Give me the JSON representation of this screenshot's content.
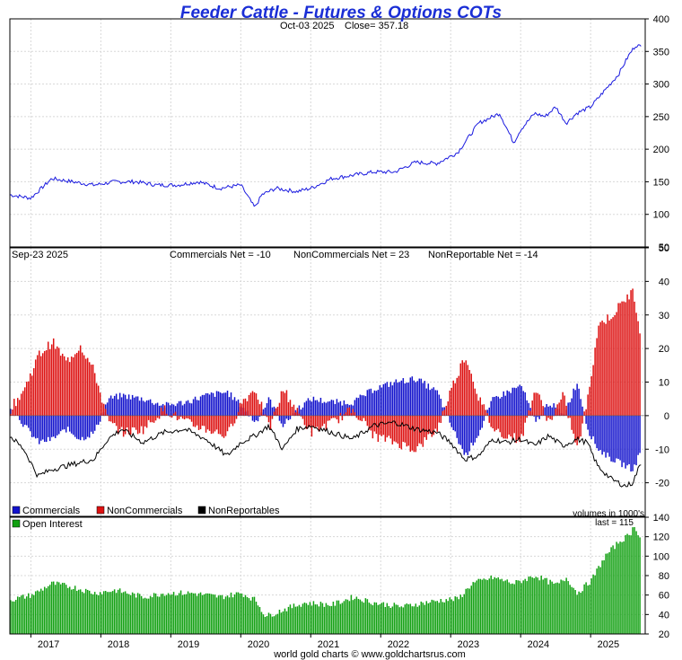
{
  "chart_data": {
    "type": "line",
    "title": "Feeder Cattle - Futures & Options COTs",
    "footer": "world gold charts © www.goldchartsrus.com",
    "x_axis": {
      "labels": [
        "2017",
        "2018",
        "2019",
        "2020",
        "2021",
        "2022",
        "2023",
        "2024",
        "2025"
      ]
    },
    "colors": {
      "title": "#1a2ed6",
      "price": "#1a1adf",
      "commercials": "#1212cc",
      "noncommercials": "#dd1111",
      "nonreportables": "#000000",
      "open_interest": "#11a011",
      "grid": "#d8d8d8"
    },
    "price_panel": {
      "subtitle_date": "Oct-03  2025",
      "subtitle_close": "Close= 357.18",
      "ylim": [
        50,
        400
      ],
      "yticks": [
        "400",
        "350",
        "300",
        "250",
        "200",
        "150",
        "100",
        "50"
      ],
      "series": {
        "name": "Feeder Cattle",
        "x": [
          2016.7,
          2017.0,
          2017.3,
          2017.6,
          2017.9,
          2018.2,
          2018.5,
          2018.8,
          2019.1,
          2019.4,
          2019.7,
          2020.0,
          2020.2,
          2020.3,
          2020.5,
          2020.8,
          2021.0,
          2021.3,
          2021.6,
          2021.9,
          2022.2,
          2022.5,
          2022.8,
          2023.1,
          2023.4,
          2023.7,
          2023.9,
          2024.0,
          2024.2,
          2024.35,
          2024.5,
          2024.65,
          2024.8,
          2025.0,
          2025.2,
          2025.4,
          2025.55,
          2025.65,
          2025.72
        ],
        "values": [
          130,
          125,
          155,
          150,
          145,
          150,
          150,
          145,
          145,
          150,
          140,
          145,
          110,
          130,
          140,
          135,
          140,
          155,
          160,
          165,
          165,
          180,
          178,
          195,
          240,
          255,
          210,
          230,
          255,
          250,
          265,
          240,
          255,
          265,
          290,
          315,
          345,
          360,
          357
        ]
      }
    },
    "cot_panel": {
      "date": "Sep-23  2025",
      "commercials_net": "Commercials Net = -10",
      "noncommercials_net": "NonCommercials Net = 23",
      "nonreportable_net": "NonReportable Net = -14",
      "ylim": [
        -30,
        50
      ],
      "yticks": [
        "50",
        "40",
        "30",
        "20",
        "10",
        "0",
        "-10",
        "-20"
      ],
      "legend": [
        "Commercials",
        "NonCommercials",
        "NonReportables"
      ],
      "volumes_note": "volumes in 1000's",
      "series": [
        {
          "name": "NonCommercials",
          "x": [
            2016.7,
            2016.9,
            2017.1,
            2017.3,
            2017.5,
            2017.7,
            2017.9,
            2018.1,
            2018.3,
            2018.6,
            2018.9,
            2019.2,
            2019.5,
            2019.8,
            2020.0,
            2020.2,
            2020.4,
            2020.6,
            2020.8,
            2021.0,
            2021.3,
            2021.6,
            2021.9,
            2022.2,
            2022.5,
            2022.8,
            2023.0,
            2023.2,
            2023.4,
            2023.6,
            2023.8,
            2024.0,
            2024.2,
            2024.4,
            2024.6,
            2024.8,
            2024.95,
            2025.1,
            2025.3,
            2025.5,
            2025.6,
            2025.72
          ],
          "values": [
            2,
            8,
            18,
            22,
            16,
            21,
            13,
            -2,
            -5,
            -4,
            2,
            -2,
            -4,
            -6,
            4,
            8,
            -4,
            8,
            1,
            -5,
            -2,
            2,
            -6,
            -8,
            -10,
            -4,
            8,
            18,
            5,
            -4,
            -6,
            -7,
            8,
            -2,
            6,
            -10,
            5,
            27,
            30,
            35,
            37,
            23
          ]
        },
        {
          "name": "Commercials",
          "x": [
            2016.7,
            2016.9,
            2017.1,
            2017.3,
            2017.5,
            2017.7,
            2017.9,
            2018.1,
            2018.3,
            2018.6,
            2018.9,
            2019.2,
            2019.5,
            2019.8,
            2020.0,
            2020.2,
            2020.4,
            2020.6,
            2020.8,
            2021.0,
            2021.3,
            2021.6,
            2021.9,
            2022.2,
            2022.5,
            2022.8,
            2023.0,
            2023.2,
            2023.4,
            2023.6,
            2023.8,
            2024.0,
            2024.2,
            2024.4,
            2024.6,
            2024.8,
            2024.95,
            2025.1,
            2025.3,
            2025.5,
            2025.6,
            2025.72
          ],
          "values": [
            3,
            -3,
            -8,
            -7,
            -4,
            -7,
            -5,
            5,
            6,
            5,
            3,
            4,
            6,
            7,
            3,
            -2,
            5,
            -3,
            2,
            5,
            4,
            4,
            8,
            10,
            11,
            7,
            -3,
            -12,
            -5,
            5,
            7,
            9,
            -2,
            4,
            0,
            10,
            -4,
            -10,
            -13,
            -15,
            -16,
            -10
          ]
        },
        {
          "name": "NonReportables",
          "x": [
            2016.7,
            2016.9,
            2017.1,
            2017.3,
            2017.5,
            2017.7,
            2017.9,
            2018.1,
            2018.3,
            2018.6,
            2018.9,
            2019.2,
            2019.5,
            2019.8,
            2020.0,
            2020.2,
            2020.4,
            2020.6,
            2020.8,
            2021.0,
            2021.3,
            2021.6,
            2021.9,
            2022.2,
            2022.5,
            2022.8,
            2023.0,
            2023.2,
            2023.4,
            2023.6,
            2023.8,
            2024.0,
            2024.2,
            2024.4,
            2024.6,
            2024.8,
            2024.95,
            2025.1,
            2025.3,
            2025.5,
            2025.6,
            2025.72
          ],
          "values": [
            -6,
            -10,
            -18,
            -16,
            -15,
            -14,
            -13,
            -7,
            -4,
            -8,
            -5,
            -4,
            -7,
            -12,
            -8,
            -6,
            -3,
            -10,
            -4,
            -3,
            -5,
            -7,
            -3,
            -2,
            -4,
            -5,
            -8,
            -13,
            -12,
            -7,
            -8,
            -7,
            -9,
            -6,
            -9,
            -7,
            -8,
            -15,
            -19,
            -21,
            -20,
            -14
          ]
        }
      ]
    },
    "oi_panel": {
      "legend": "Open Interest",
      "last": "last = 115",
      "ylim": [
        20,
        140
      ],
      "yticks": [
        "140",
        "120",
        "100",
        "80",
        "60",
        "40",
        "20"
      ],
      "series": {
        "name": "Open Interest",
        "x": [
          2016.7,
          2017.0,
          2017.3,
          2017.6,
          2017.9,
          2018.2,
          2018.6,
          2018.9,
          2019.3,
          2019.7,
          2020.0,
          2020.2,
          2020.35,
          2020.6,
          2020.9,
          2021.3,
          2021.6,
          2021.9,
          2022.3,
          2022.6,
          2022.9,
          2023.1,
          2023.3,
          2023.6,
          2023.9,
          2024.2,
          2024.5,
          2024.65,
          2024.8,
          2025.0,
          2025.2,
          2025.4,
          2025.55,
          2025.62,
          2025.72
        ],
        "values": [
          55,
          60,
          72,
          68,
          62,
          65,
          58,
          62,
          62,
          58,
          62,
          55,
          38,
          45,
          52,
          50,
          58,
          52,
          48,
          52,
          55,
          56,
          72,
          78,
          72,
          80,
          70,
          78,
          62,
          75,
          100,
          115,
          122,
          132,
          115
        ]
      }
    }
  }
}
